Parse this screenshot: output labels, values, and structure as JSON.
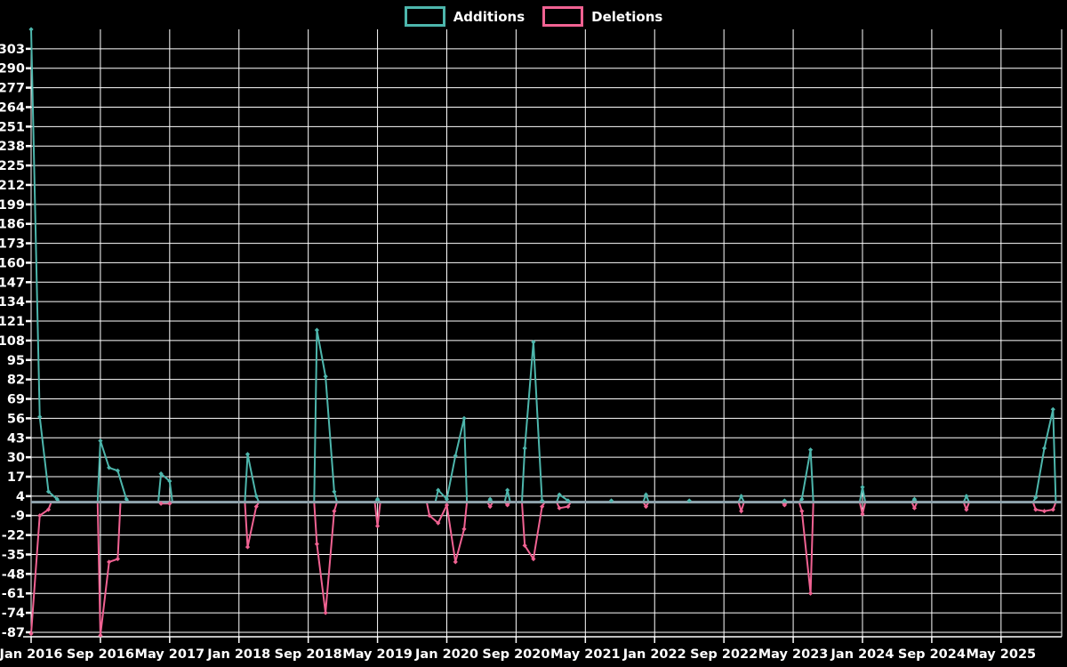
{
  "legend": {
    "items": [
      {
        "label": "Additions",
        "color": "#4db6ac"
      },
      {
        "label": "Deletions",
        "color": "#f06292"
      }
    ]
  },
  "chart_data": {
    "type": "line",
    "title": "",
    "xlabel": "",
    "ylabel": "",
    "x": [
      "Jan 2016",
      "Feb 2016",
      "Mar 2016",
      "Apr 2016",
      "May 2016",
      "Jun 2016",
      "Jul 2016",
      "Aug 2016",
      "Sep 2016",
      "Oct 2016",
      "Nov 2016",
      "Dec 2016",
      "Jan 2017",
      "Feb 2017",
      "Mar 2017",
      "Apr 2017",
      "May 2017",
      "Jun 2017",
      "Jul 2017",
      "Aug 2017",
      "Sep 2017",
      "Oct 2017",
      "Nov 2017",
      "Dec 2017",
      "Jan 2018",
      "Feb 2018",
      "Mar 2018",
      "Apr 2018",
      "May 2018",
      "Jun 2018",
      "Jul 2018",
      "Aug 2018",
      "Sep 2018",
      "Oct 2018",
      "Nov 2018",
      "Dec 2018",
      "Jan 2019",
      "Feb 2019",
      "Mar 2019",
      "Apr 2019",
      "May 2019",
      "Jun 2019",
      "Jul 2019",
      "Aug 2019",
      "Sep 2019",
      "Oct 2019",
      "Nov 2019",
      "Dec 2019",
      "Jan 2020",
      "Feb 2020",
      "Mar 2020",
      "Apr 2020",
      "May 2020",
      "Jun 2020",
      "Jul 2020",
      "Aug 2020",
      "Sep 2020",
      "Oct 2020",
      "Nov 2020",
      "Dec 2020",
      "Jan 2021",
      "Feb 2021",
      "Mar 2021",
      "Apr 2021",
      "May 2021",
      "Jun 2021",
      "Jul 2021",
      "Aug 2021",
      "Sep 2021",
      "Oct 2021",
      "Nov 2021",
      "Dec 2021",
      "Jan 2022",
      "Feb 2022",
      "Mar 2022",
      "Apr 2022",
      "May 2022",
      "Jun 2022",
      "Jul 2022",
      "Aug 2022",
      "Sep 2022",
      "Oct 2022",
      "Nov 2022",
      "Dec 2022",
      "Jan 2023",
      "Feb 2023",
      "Mar 2023",
      "Apr 2023",
      "May 2023",
      "Jun 2023",
      "Jul 2023",
      "Aug 2023",
      "Sep 2023",
      "Oct 2023",
      "Nov 2023",
      "Dec 2023",
      "Jan 2024",
      "Feb 2024",
      "Mar 2024",
      "Apr 2024",
      "May 2024",
      "Jun 2024",
      "Jul 2024",
      "Aug 2024",
      "Sep 2024",
      "Oct 2024",
      "Nov 2024",
      "Dec 2024",
      "Jan 2025",
      "Feb 2025",
      "Mar 2025",
      "Apr 2025",
      "May 2025",
      "Jun 2025",
      "Jul 2025",
      "Aug 2025",
      "Sep 2025",
      "Oct 2025",
      "Nov 2025",
      "Dec 2025"
    ],
    "series": [
      {
        "name": "Additions",
        "color": "#4db6ac",
        "values": [
          316,
          57,
          7,
          2,
          0,
          0,
          0,
          0,
          41,
          23,
          21,
          2,
          0,
          0,
          0,
          19,
          14,
          0,
          0,
          0,
          0,
          0,
          0,
          0,
          0,
          32,
          4,
          0,
          0,
          0,
          0,
          0,
          0,
          115,
          84,
          7,
          0,
          0,
          0,
          0,
          2,
          0,
          0,
          0,
          0,
          0,
          0,
          8,
          2,
          31,
          56,
          0,
          0,
          2,
          0,
          8,
          0,
          36,
          107,
          1,
          0,
          5,
          1,
          0,
          0,
          0,
          0,
          1,
          0,
          0,
          0,
          5,
          0,
          0,
          0,
          0,
          1,
          0,
          0,
          0,
          0,
          0,
          4,
          0,
          0,
          0,
          0,
          1,
          0,
          2,
          35,
          0,
          0,
          0,
          0,
          0,
          10,
          0,
          0,
          0,
          0,
          0,
          2,
          0,
          0,
          0,
          0,
          0,
          4,
          0,
          0,
          0,
          0,
          0,
          0,
          0,
          3,
          36,
          62,
          0
        ]
      },
      {
        "name": "Deletions",
        "color": "#f06292",
        "values": [
          -88,
          -9,
          -5,
          0,
          0,
          0,
          0,
          0,
          -89,
          -40,
          -38,
          0,
          0,
          0,
          0,
          -1,
          -1,
          0,
          0,
          0,
          0,
          0,
          0,
          0,
          0,
          -30,
          -3,
          0,
          0,
          0,
          0,
          0,
          0,
          -28,
          -74,
          -6,
          0,
          0,
          0,
          0,
          -16,
          0,
          0,
          0,
          0,
          0,
          -9,
          -14,
          -2,
          -40,
          -18,
          0,
          0,
          -3,
          0,
          -2,
          0,
          -29,
          -38,
          -3,
          0,
          -4,
          -3,
          0,
          0,
          0,
          0,
          0,
          0,
          0,
          0,
          -3,
          0,
          0,
          0,
          0,
          0,
          0,
          0,
          0,
          0,
          0,
          -6,
          0,
          0,
          0,
          0,
          -2,
          0,
          -6,
          -61,
          0,
          0,
          0,
          0,
          0,
          -8,
          0,
          0,
          0,
          0,
          0,
          -4,
          0,
          0,
          0,
          0,
          0,
          -5,
          0,
          0,
          0,
          0,
          0,
          0,
          0,
          -5,
          -6,
          -5,
          0
        ]
      }
    ],
    "xtick_labels": [
      "Jan 2016",
      "Sep 2016",
      "May 2017",
      "Jan 2018",
      "Sep 2018",
      "May 2019",
      "Jan 2020",
      "Sep 2020",
      "May 2021",
      "Jan 2022",
      "Sep 2022",
      "May 2023",
      "Jan 2024",
      "Sep 2024",
      "May 2025"
    ],
    "xtick_every_months": 8,
    "ytick_labels": [
      303,
      290,
      277,
      264,
      251,
      238,
      225,
      212,
      199,
      186,
      173,
      160,
      147,
      134,
      121,
      108,
      95,
      82,
      69,
      56,
      43,
      30,
      17,
      4,
      -9,
      -22,
      -35,
      -48,
      -61,
      -74,
      -87
    ],
    "ylim": [
      -90,
      316
    ],
    "grid": true,
    "legend_position": "top",
    "background_color": "#000000",
    "grid_color": "#ffffff",
    "zero_line_color": "#90a4ae",
    "text_color": "#ffffff"
  }
}
